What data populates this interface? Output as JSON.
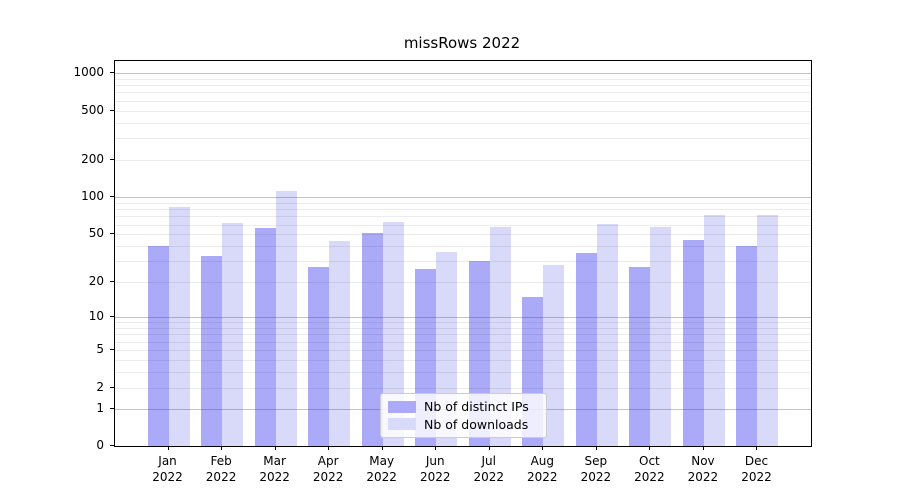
{
  "title": "missRows 2022",
  "colors": {
    "ips_bar": "#aaaaf9",
    "downloads_bar": "#d9d9f9",
    "axis": "#000000",
    "legend_border": "#cccccc"
  },
  "legend": {
    "position": "lower center",
    "items": [
      {
        "label": "Nb of distinct IPs",
        "color_key": "ips_bar"
      },
      {
        "label": "Nb of downloads",
        "color_key": "downloads_bar"
      }
    ]
  },
  "chart_data": {
    "type": "bar",
    "title": "missRows 2022",
    "categories": [
      "Jan 2022",
      "Feb 2022",
      "Mar 2022",
      "Apr 2022",
      "May 2022",
      "Jun 2022",
      "Jul 2022",
      "Aug 2022",
      "Sep 2022",
      "Oct 2022",
      "Nov 2022",
      "Dec 2022"
    ],
    "series": [
      {
        "name": "Nb of distinct IPs",
        "values": [
          40,
          33,
          56,
          27,
          51,
          26,
          30,
          15,
          35,
          27,
          45,
          40
        ]
      },
      {
        "name": "Nb of downloads",
        "values": [
          84,
          62,
          113,
          44,
          63,
          36,
          57,
          28,
          61,
          57,
          72,
          72
        ]
      }
    ],
    "xlabel": "",
    "ylabel": "",
    "y_scale": "log1p",
    "y_ticks": [
      1000,
      500,
      200,
      100,
      50,
      20,
      10,
      5,
      2,
      1,
      0
    ],
    "y_minor_gridlines": [
      2,
      3,
      4,
      5,
      6,
      7,
      8,
      9,
      20,
      30,
      40,
      50,
      60,
      70,
      80,
      90,
      200,
      300,
      400,
      500,
      600,
      700,
      800,
      900
    ],
    "y_major_gridlines": [
      1,
      10,
      100,
      1000
    ],
    "ylim": [
      0,
      1270
    ],
    "grid": true,
    "legend_position": "lower center"
  }
}
